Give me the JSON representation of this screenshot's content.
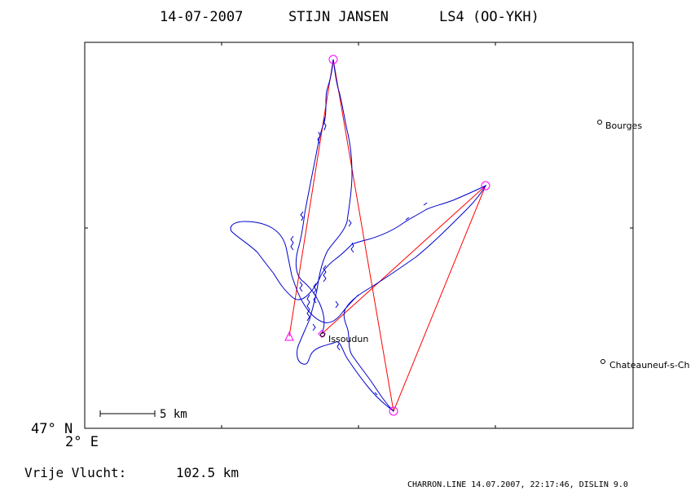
{
  "header": {
    "date": "14-07-2007",
    "pilot": "STIJN JANSEN",
    "glider": "LS4 (OO-YKH)"
  },
  "axes": {
    "lat_label": "47° N",
    "lon_label": "2° E"
  },
  "scale_bar": {
    "label": "5 km",
    "km": 5
  },
  "towns": [
    {
      "name": "Bourges"
    },
    {
      "name": "Issoudun"
    },
    {
      "name": "Chateauneuf-s-Ch"
    }
  ],
  "distance": {
    "label": "Vrije Vlucht:",
    "value": "102.5 km"
  },
  "footer": "CHARRON.LINE 14.07.2007, 22:17:46, DISLIN 9.0",
  "colors": {
    "frame": "#000000",
    "task": "#ff0000",
    "track": "#0000cc",
    "turnpoint": "#ff00ff",
    "text": "#000000"
  }
}
